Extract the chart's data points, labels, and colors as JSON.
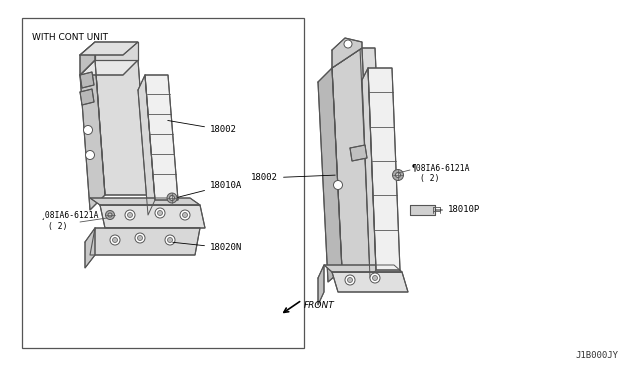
{
  "background_color": "#ffffff",
  "line_color": "#555555",
  "fill_light": "#e8e8e8",
  "fill_mid": "#d0d0d0",
  "fill_dark": "#b8b8b8",
  "footer_text": "J1B000JY",
  "box_label": "WITH CONT UNIT",
  "front_text": "FRONT"
}
